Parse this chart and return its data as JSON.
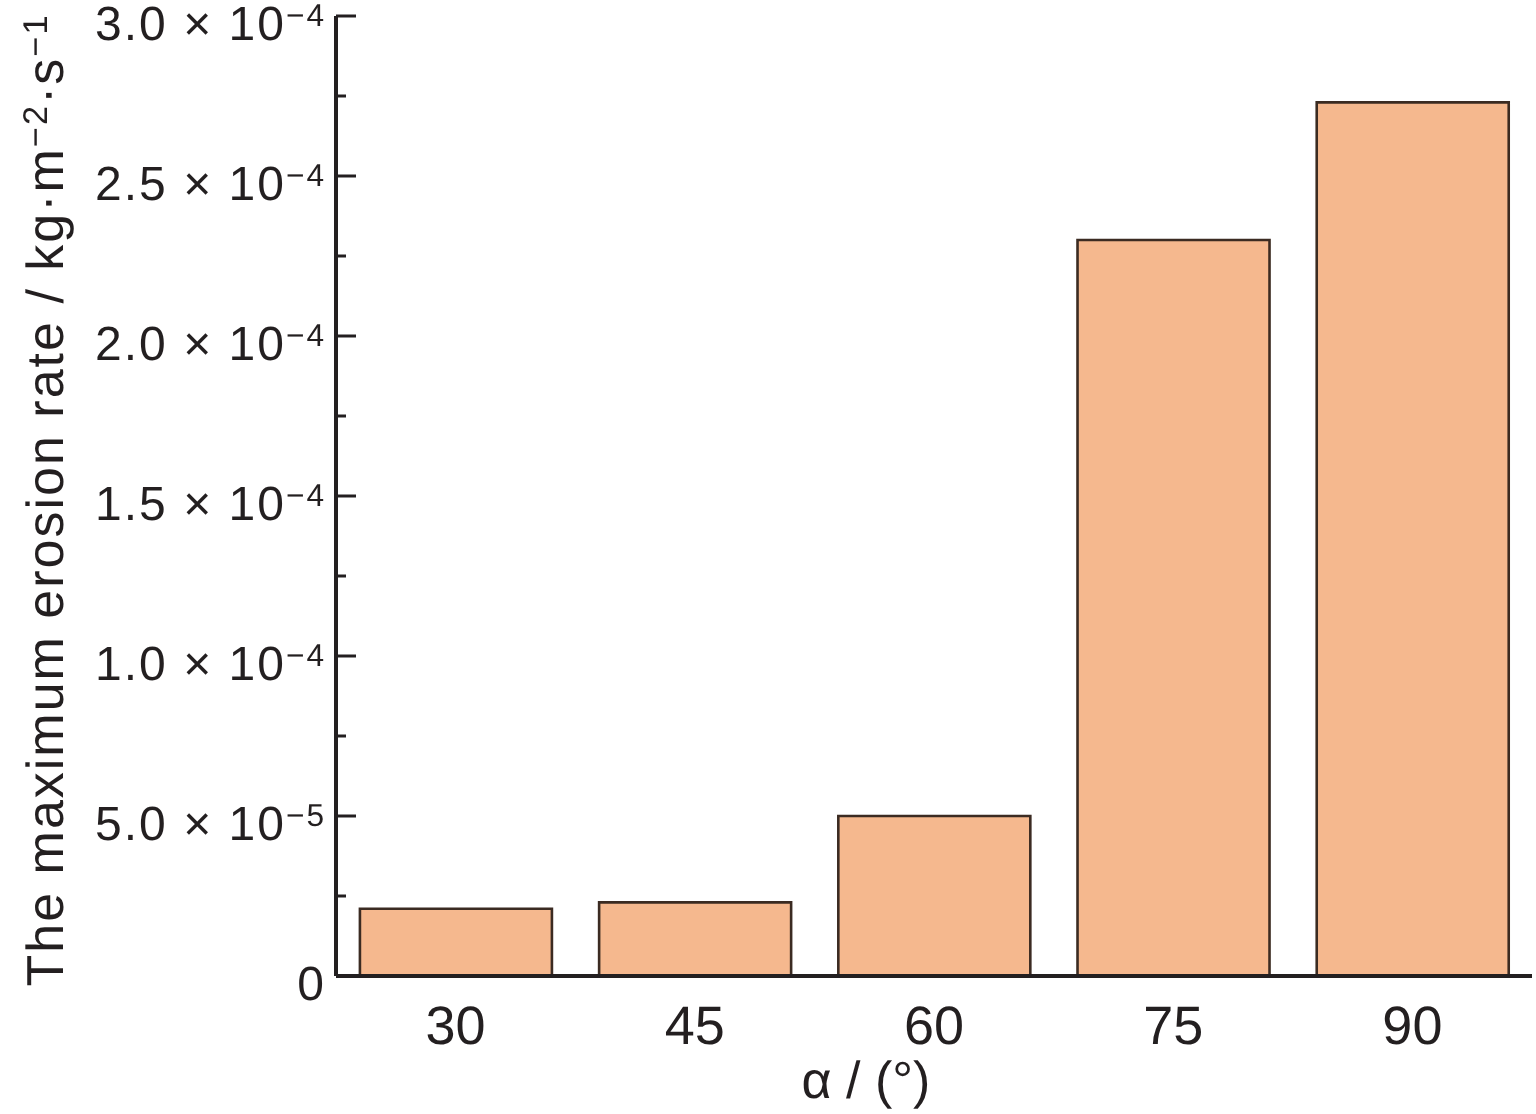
{
  "chart_data": {
    "type": "bar",
    "xlabel": "α / (°)",
    "ylabel": "The maximum erosion rate / kg·m$^{−2}$·s$^{−1}$",
    "categories": [
      "30",
      "45",
      "60",
      "75",
      "90"
    ],
    "values": [
      2.1e-05,
      2.3e-05,
      5e-05,
      0.00023,
      0.000273
    ],
    "color": "#f5b88e",
    "ylim": [
      0,
      0.0003
    ],
    "yticks": [
      0,
      {
        "value": 2.5e-05,
        "label": null
      },
      {
        "value": 5e-05,
        "label": "5.0 × 10$^{−5}$"
      },
      {
        "value": 7.5e-05,
        "label": null
      },
      {
        "value": 0.0001,
        "label": "1.0 × 10$^{−4}$"
      },
      {
        "value": 0.000125,
        "label": null
      },
      {
        "value": 0.00015,
        "label": "1.5 × 10$^{−4}$"
      },
      {
        "value": 0.000175,
        "label": null
      },
      {
        "value": 0.0002,
        "label": "2.0 × 10$^{−4}$"
      },
      {
        "value": 0.000225,
        "label": null
      },
      {
        "value": 0.00025,
        "label": "2.5 × 10$^{−4}$"
      },
      {
        "value": 0.000275,
        "label": null
      },
      {
        "value": 0.0003,
        "label": "3.0 × 10$^{−4}$"
      }
    ]
  }
}
